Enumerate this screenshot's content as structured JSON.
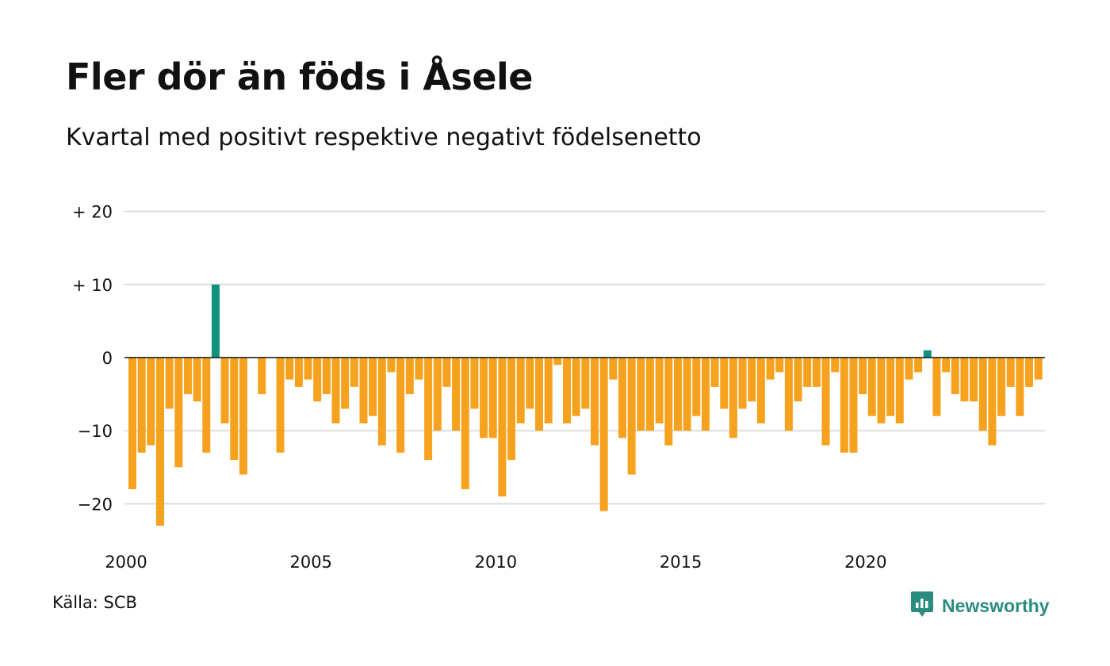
{
  "title": "Fler dör än föds i Åsele",
  "subtitle": "Kvartal med positivt respektive negativt födelsenetto",
  "source": "Källa: SCB",
  "brand": "Newsworthy",
  "colors": {
    "negative": "#f6a21e",
    "positive": "#13917f",
    "grid": "#dddddd",
    "zero_line": "#111111",
    "brand": "#2a8c7e"
  },
  "chart_data": {
    "type": "bar",
    "x_start_year": 2000,
    "periods_per_year": 4,
    "ylim": [
      -25,
      20
    ],
    "y_ticks": [
      {
        "value": 20,
        "label": "+ 20"
      },
      {
        "value": 10,
        "label": "+ 10"
      },
      {
        "value": 0,
        "label": "0"
      },
      {
        "value": -10,
        "label": "−10"
      },
      {
        "value": -20,
        "label": "−20"
      }
    ],
    "x_ticks": [
      {
        "value": 2000,
        "label": "2000"
      },
      {
        "value": 2005,
        "label": "2005"
      },
      {
        "value": 2010,
        "label": "2010"
      },
      {
        "value": 2015,
        "label": "2015"
      },
      {
        "value": 2020,
        "label": "2020"
      }
    ],
    "values": [
      -18,
      -13,
      -12,
      -23,
      -7,
      -15,
      -5,
      -6,
      -13,
      10,
      -9,
      -14,
      -16,
      0,
      -5,
      0,
      -13,
      -3,
      -4,
      -3,
      -6,
      -5,
      -9,
      -7,
      -4,
      -9,
      -8,
      -12,
      -2,
      -13,
      -5,
      -3,
      -14,
      -10,
      -4,
      -10,
      -18,
      -7,
      -11,
      -11,
      -19,
      -14,
      -9,
      -7,
      -10,
      -9,
      -1,
      -9,
      -8,
      -7,
      -12,
      -21,
      -3,
      -11,
      -16,
      -10,
      -10,
      -9,
      -12,
      -10,
      -10,
      -8,
      -10,
      -4,
      -7,
      -11,
      -7,
      -6,
      -9,
      -3,
      -2,
      -10,
      -6,
      -4,
      -4,
      -12,
      -2,
      -13,
      -13,
      -5,
      -8,
      -9,
      -8,
      -9,
      -3,
      -2,
      1,
      -8,
      -2,
      -5,
      -6,
      -6,
      -10,
      -12,
      -8,
      -4,
      -8,
      -4,
      -3
    ]
  }
}
